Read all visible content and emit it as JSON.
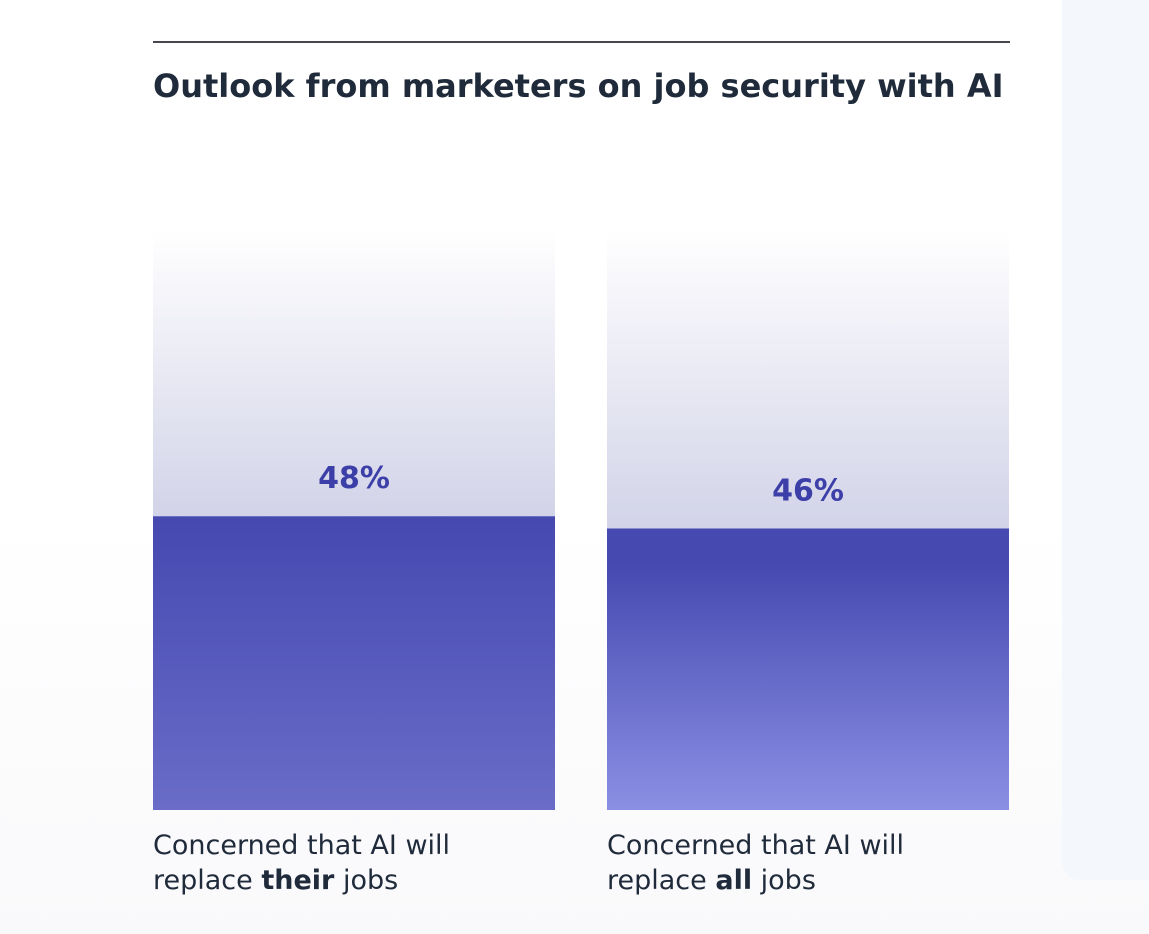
{
  "chart_data": {
    "type": "bar",
    "title": "Outlook from marketers on job security with AI",
    "categories": [
      {
        "before": "Concerned that AI will replace ",
        "emphasis": "their",
        "after": " jobs"
      },
      {
        "before": "Concerned that AI will replace ",
        "emphasis": "all",
        "after": " jobs"
      }
    ],
    "values": [
      48,
      46
    ],
    "value_labels": [
      "48%",
      "46%"
    ],
    "ylim": [
      0,
      100
    ],
    "grid": false,
    "legend": "none",
    "colors": {
      "bar_top": "#4549b0",
      "bar_bottom_0": "#6a6cc8",
      "bar_bottom_1": "#8b8fe3",
      "track_top": "#ffffff",
      "track_bottom": "#d2d3e8",
      "label": "#3d3fa8",
      "text": "#1f2a3a"
    }
  }
}
